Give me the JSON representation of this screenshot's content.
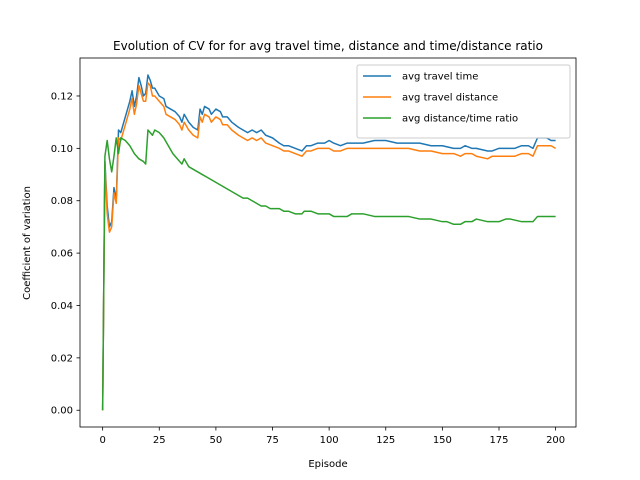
{
  "chart_data": {
    "type": "line",
    "title": "Evolution of CV for for avg travel time, distance and time/distance ratio",
    "xlabel": "Episode",
    "ylabel": "Coefficient of variation",
    "xlim": [
      -10,
      209
    ],
    "ylim": [
      -0.0064,
      0.1345
    ],
    "xticks": [
      0,
      25,
      50,
      75,
      100,
      125,
      150,
      175,
      200
    ],
    "yticks": [
      0.0,
      0.02,
      0.04,
      0.06,
      0.08,
      0.1,
      0.12
    ],
    "legend_position": "top-right",
    "grid": false,
    "series": [
      {
        "name": "avg travel time",
        "color": "#1f77b4",
        "points": [
          [
            0,
            0.0
          ],
          [
            1,
            0.095
          ],
          [
            2,
            0.078
          ],
          [
            3,
            0.07
          ],
          [
            4,
            0.072
          ],
          [
            5,
            0.085
          ],
          [
            6,
            0.08
          ],
          [
            7,
            0.107
          ],
          [
            8,
            0.106
          ],
          [
            10,
            0.112
          ],
          [
            12,
            0.118
          ],
          [
            13,
            0.122
          ],
          [
            14,
            0.116
          ],
          [
            15,
            0.12
          ],
          [
            16,
            0.127
          ],
          [
            17,
            0.124
          ],
          [
            18,
            0.12
          ],
          [
            19,
            0.121
          ],
          [
            20,
            0.128
          ],
          [
            21,
            0.126
          ],
          [
            22,
            0.123
          ],
          [
            23,
            0.123
          ],
          [
            25,
            0.12
          ],
          [
            27,
            0.119
          ],
          [
            28,
            0.116
          ],
          [
            30,
            0.115
          ],
          [
            32,
            0.114
          ],
          [
            34,
            0.112
          ],
          [
            35,
            0.11
          ],
          [
            36,
            0.113
          ],
          [
            38,
            0.11
          ],
          [
            40,
            0.108
          ],
          [
            42,
            0.107
          ],
          [
            43,
            0.115
          ],
          [
            44,
            0.113
          ],
          [
            45,
            0.116
          ],
          [
            47,
            0.115
          ],
          [
            48,
            0.113
          ],
          [
            50,
            0.115
          ],
          [
            52,
            0.114
          ],
          [
            53,
            0.112
          ],
          [
            55,
            0.112
          ],
          [
            57,
            0.11
          ],
          [
            60,
            0.108
          ],
          [
            62,
            0.107
          ],
          [
            64,
            0.106
          ],
          [
            66,
            0.107
          ],
          [
            68,
            0.106
          ],
          [
            70,
            0.107
          ],
          [
            72,
            0.105
          ],
          [
            75,
            0.104
          ],
          [
            78,
            0.102
          ],
          [
            80,
            0.101
          ],
          [
            82,
            0.101
          ],
          [
            85,
            0.1
          ],
          [
            88,
            0.099
          ],
          [
            90,
            0.101
          ],
          [
            92,
            0.101
          ],
          [
            95,
            0.102
          ],
          [
            98,
            0.102
          ],
          [
            100,
            0.103
          ],
          [
            102,
            0.102
          ],
          [
            105,
            0.101
          ],
          [
            108,
            0.102
          ],
          [
            110,
            0.102
          ],
          [
            115,
            0.102
          ],
          [
            120,
            0.103
          ],
          [
            125,
            0.103
          ],
          [
            130,
            0.102
          ],
          [
            135,
            0.102
          ],
          [
            140,
            0.102
          ],
          [
            145,
            0.101
          ],
          [
            150,
            0.101
          ],
          [
            155,
            0.1
          ],
          [
            158,
            0.1
          ],
          [
            160,
            0.101
          ],
          [
            163,
            0.1
          ],
          [
            165,
            0.1
          ],
          [
            170,
            0.099
          ],
          [
            172,
            0.099
          ],
          [
            175,
            0.1
          ],
          [
            178,
            0.1
          ],
          [
            180,
            0.1
          ],
          [
            182,
            0.1
          ],
          [
            185,
            0.101
          ],
          [
            188,
            0.101
          ],
          [
            190,
            0.1
          ],
          [
            192,
            0.104
          ],
          [
            194,
            0.104
          ],
          [
            196,
            0.104
          ],
          [
            198,
            0.103
          ],
          [
            200,
            0.103
          ]
        ]
      },
      {
        "name": "avg travel distance",
        "color": "#ff7f0e",
        "points": [
          [
            0,
            0.0
          ],
          [
            1,
            0.094
          ],
          [
            2,
            0.075
          ],
          [
            3,
            0.068
          ],
          [
            4,
            0.07
          ],
          [
            5,
            0.083
          ],
          [
            6,
            0.079
          ],
          [
            7,
            0.104
          ],
          [
            8,
            0.103
          ],
          [
            10,
            0.109
          ],
          [
            12,
            0.115
          ],
          [
            13,
            0.119
          ],
          [
            14,
            0.113
          ],
          [
            15,
            0.117
          ],
          [
            16,
            0.124
          ],
          [
            17,
            0.121
          ],
          [
            18,
            0.118
          ],
          [
            19,
            0.118
          ],
          [
            20,
            0.125
          ],
          [
            21,
            0.124
          ],
          [
            22,
            0.12
          ],
          [
            23,
            0.12
          ],
          [
            25,
            0.118
          ],
          [
            27,
            0.116
          ],
          [
            28,
            0.113
          ],
          [
            30,
            0.112
          ],
          [
            32,
            0.111
          ],
          [
            34,
            0.109
          ],
          [
            35,
            0.107
          ],
          [
            36,
            0.11
          ],
          [
            38,
            0.107
          ],
          [
            40,
            0.105
          ],
          [
            42,
            0.104
          ],
          [
            43,
            0.112
          ],
          [
            44,
            0.11
          ],
          [
            45,
            0.113
          ],
          [
            47,
            0.112
          ],
          [
            48,
            0.11
          ],
          [
            50,
            0.112
          ],
          [
            52,
            0.111
          ],
          [
            53,
            0.109
          ],
          [
            55,
            0.109
          ],
          [
            57,
            0.107
          ],
          [
            60,
            0.105
          ],
          [
            62,
            0.104
          ],
          [
            64,
            0.103
          ],
          [
            66,
            0.104
          ],
          [
            68,
            0.103
          ],
          [
            70,
            0.104
          ],
          [
            72,
            0.102
          ],
          [
            75,
            0.101
          ],
          [
            78,
            0.1
          ],
          [
            80,
            0.099
          ],
          [
            82,
            0.099
          ],
          [
            85,
            0.098
          ],
          [
            88,
            0.097
          ],
          [
            90,
            0.099
          ],
          [
            92,
            0.099
          ],
          [
            95,
            0.1
          ],
          [
            98,
            0.1
          ],
          [
            100,
            0.1
          ],
          [
            102,
            0.099
          ],
          [
            105,
            0.099
          ],
          [
            108,
            0.1
          ],
          [
            110,
            0.1
          ],
          [
            115,
            0.1
          ],
          [
            120,
            0.1
          ],
          [
            125,
            0.1
          ],
          [
            130,
            0.1
          ],
          [
            135,
            0.1
          ],
          [
            140,
            0.099
          ],
          [
            145,
            0.099
          ],
          [
            150,
            0.098
          ],
          [
            155,
            0.098
          ],
          [
            158,
            0.097
          ],
          [
            160,
            0.098
          ],
          [
            163,
            0.098
          ],
          [
            165,
            0.097
          ],
          [
            170,
            0.096
          ],
          [
            172,
            0.097
          ],
          [
            175,
            0.097
          ],
          [
            178,
            0.097
          ],
          [
            180,
            0.097
          ],
          [
            182,
            0.097
          ],
          [
            185,
            0.098
          ],
          [
            188,
            0.098
          ],
          [
            190,
            0.097
          ],
          [
            192,
            0.101
          ],
          [
            194,
            0.101
          ],
          [
            196,
            0.101
          ],
          [
            198,
            0.101
          ],
          [
            200,
            0.1
          ]
        ]
      },
      {
        "name": "avg distance/time ratio",
        "color": "#2ca02c",
        "points": [
          [
            0,
            0.0
          ],
          [
            1,
            0.097
          ],
          [
            2,
            0.103
          ],
          [
            3,
            0.096
          ],
          [
            4,
            0.091
          ],
          [
            5,
            0.097
          ],
          [
            6,
            0.104
          ],
          [
            7,
            0.098
          ],
          [
            8,
            0.104
          ],
          [
            10,
            0.103
          ],
          [
            12,
            0.101
          ],
          [
            14,
            0.098
          ],
          [
            16,
            0.096
          ],
          [
            18,
            0.095
          ],
          [
            19,
            0.094
          ],
          [
            20,
            0.107
          ],
          [
            22,
            0.105
          ],
          [
            23,
            0.107
          ],
          [
            25,
            0.106
          ],
          [
            27,
            0.104
          ],
          [
            29,
            0.101
          ],
          [
            31,
            0.098
          ],
          [
            33,
            0.096
          ],
          [
            35,
            0.094
          ],
          [
            36,
            0.096
          ],
          [
            38,
            0.093
          ],
          [
            40,
            0.092
          ],
          [
            42,
            0.091
          ],
          [
            44,
            0.09
          ],
          [
            46,
            0.089
          ],
          [
            48,
            0.088
          ],
          [
            50,
            0.087
          ],
          [
            52,
            0.086
          ],
          [
            54,
            0.085
          ],
          [
            56,
            0.084
          ],
          [
            58,
            0.083
          ],
          [
            60,
            0.082
          ],
          [
            62,
            0.081
          ],
          [
            64,
            0.081
          ],
          [
            66,
            0.08
          ],
          [
            68,
            0.079
          ],
          [
            70,
            0.078
          ],
          [
            72,
            0.078
          ],
          [
            74,
            0.077
          ],
          [
            76,
            0.077
          ],
          [
            78,
            0.077
          ],
          [
            80,
            0.076
          ],
          [
            82,
            0.076
          ],
          [
            85,
            0.075
          ],
          [
            88,
            0.075
          ],
          [
            89,
            0.076
          ],
          [
            90,
            0.076
          ],
          [
            92,
            0.076
          ],
          [
            95,
            0.075
          ],
          [
            98,
            0.075
          ],
          [
            100,
            0.075
          ],
          [
            102,
            0.074
          ],
          [
            105,
            0.074
          ],
          [
            108,
            0.074
          ],
          [
            110,
            0.075
          ],
          [
            115,
            0.075
          ],
          [
            120,
            0.074
          ],
          [
            125,
            0.074
          ],
          [
            130,
            0.074
          ],
          [
            135,
            0.074
          ],
          [
            140,
            0.073
          ],
          [
            145,
            0.073
          ],
          [
            150,
            0.072
          ],
          [
            152,
            0.072
          ],
          [
            155,
            0.071
          ],
          [
            158,
            0.071
          ],
          [
            160,
            0.072
          ],
          [
            163,
            0.072
          ],
          [
            165,
            0.073
          ],
          [
            170,
            0.072
          ],
          [
            175,
            0.072
          ],
          [
            178,
            0.073
          ],
          [
            180,
            0.073
          ],
          [
            185,
            0.072
          ],
          [
            188,
            0.072
          ],
          [
            190,
            0.072
          ],
          [
            192,
            0.074
          ],
          [
            194,
            0.074
          ],
          [
            196,
            0.074
          ],
          [
            198,
            0.074
          ],
          [
            200,
            0.074
          ]
        ]
      }
    ]
  }
}
